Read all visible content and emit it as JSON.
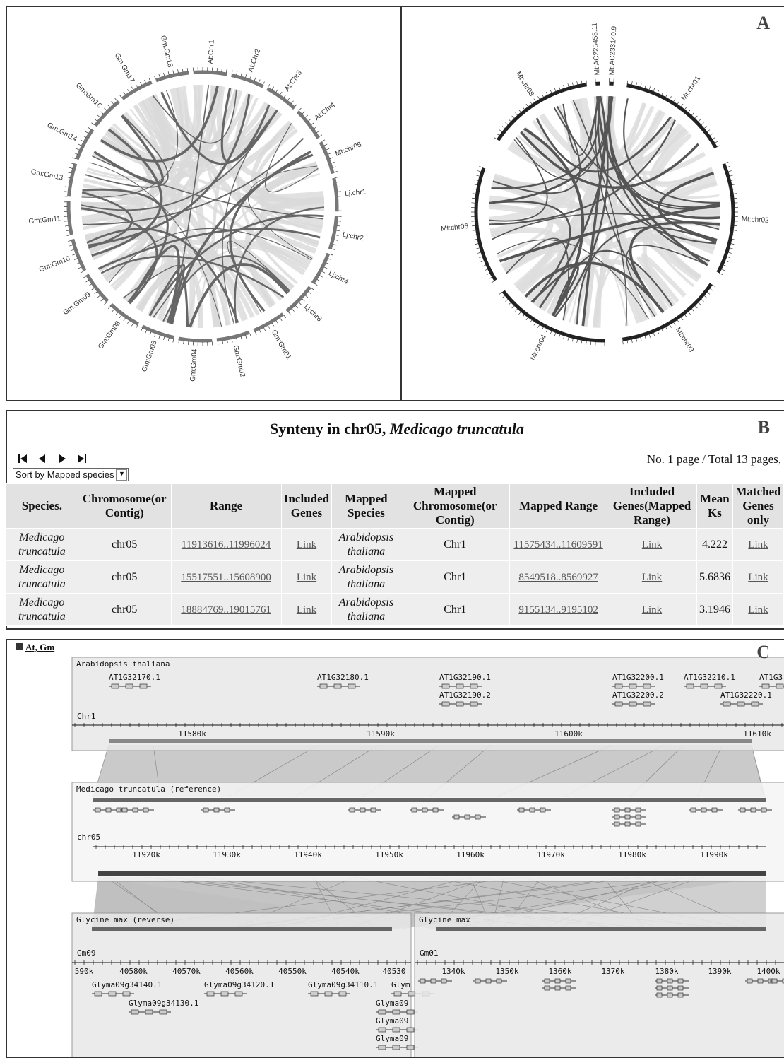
{
  "panel_a": {
    "label": "A",
    "left_chromosomes": [
      "At:Chr1",
      "At:Chr2",
      "At:Chr3",
      "At:Chr4",
      "Mt:chr05",
      "Lj:chr1",
      "Lj:chr2",
      "Lj:chr4",
      "Lj:chr6",
      "Gm:Gm01",
      "Gm:Gm02",
      "Gm:Gm04",
      "Gm:Gm05",
      "Gm:Gm08",
      "Gm:Gm09",
      "Gm:Gm10",
      "Gm:Gm11",
      "Gm:Gm13",
      "Gm:Gm14",
      "Gm:Gm16",
      "Gm:Gm17",
      "Gm:Gm18"
    ],
    "right_chromosomes": [
      "Mt:AC225458.11",
      "Mt:AC233140.9",
      "Mt:chr01",
      "Mt:chr02",
      "Mt:chr03",
      "Mt:chr04",
      "Mt:chr06",
      "Mt:chr08"
    ]
  },
  "panel_b": {
    "label": "B",
    "title_prefix": "Synteny in chr05,",
    "title_species": "Medicago truncatula",
    "pager": "No. 1 page / Total 13 pages,",
    "sort": "Sort by Mapped species",
    "table": {
      "headers": [
        "Species.",
        "Chromosome(or Contig)",
        "Range",
        "Included Genes",
        "Mapped Species",
        "Mapped Chromosome(or Contig)",
        "Mapped Range",
        "Included Genes(Mapped Range)",
        "Mean Ks",
        "Matched Genes only"
      ],
      "rows": [
        [
          "Medicago truncatula",
          "chr05",
          "11913616..11996024",
          "Link",
          "Arabidopsis thaliana",
          "Chr1",
          "11575434..11609591",
          "Link",
          "4.222",
          "Link"
        ],
        [
          "Medicago truncatula",
          "chr05",
          "15517551..15608900",
          "Link",
          "Arabidopsis thaliana",
          "Chr1",
          "8549518..8569927",
          "Link",
          "5.6836",
          "Link"
        ],
        [
          "Medicago truncatula",
          "chr05",
          "18884769..19015761",
          "Link",
          "Arabidopsis thaliana",
          "Chr1",
          "9155134..9195102",
          "Link",
          "3.1946",
          "Link"
        ]
      ]
    }
  },
  "panel_c": {
    "label": "C",
    "group": "At, Gm",
    "tracks": [
      {
        "title": "Arabidopsis thaliana",
        "chromosome": "Chr1",
        "ticks": [
          "11580k",
          "11590k",
          "11600k",
          "11610k"
        ],
        "genes": [
          "AT1G32170.1",
          "AT1G32180.1",
          "AT1G32190.1",
          "AT1G32190.2",
          "AT1G32200.1",
          "AT1G32200.2",
          "AT1G32210.1",
          "AT1G3",
          "AT1G32220.1"
        ]
      },
      {
        "title": "Medicago truncatula (reference)",
        "chromosome": "chr05",
        "ticks": [
          "11920k",
          "11930k",
          "11940k",
          "11950k",
          "11960k",
          "11970k",
          "11980k",
          "11990k"
        ],
        "genes": []
      },
      {
        "title": "Glycine max (reverse)",
        "chromosome": "Gm09",
        "ticks": [
          "590k",
          "40580k",
          "40570k",
          "40560k",
          "40550k",
          "40540k",
          "40530"
        ],
        "genes": [
          "Glyma09g34140.1",
          "Glyma09g34120.1",
          "Glyma09g34110.1",
          "Glym",
          "Glyma09g34130.1",
          "Glyma09",
          "Glyma09",
          "Glyma09"
        ]
      },
      {
        "title": "Glycine max",
        "chromosome": "Gm01",
        "ticks": [
          "1340k",
          "1350k",
          "1360k",
          "1370k",
          "1380k",
          "1390k",
          "1400k"
        ],
        "genes": []
      }
    ]
  }
}
